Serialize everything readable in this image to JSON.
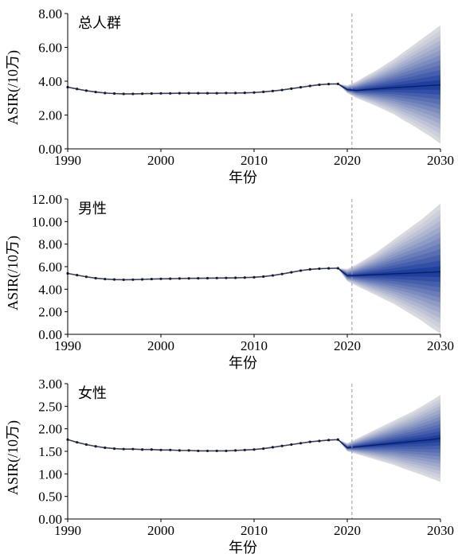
{
  "colors": {
    "fan_outer": "#d9d9de",
    "fan_inner": "#1f3f9e",
    "forecast_line": "#0a1f66",
    "observed_line": "#3a3f62",
    "observed_dot": "#1c1c24",
    "divider": "#9a9a9a",
    "axis": "#000000"
  },
  "chart_data": [
    {
      "type": "line",
      "title": "总人群",
      "xlabel": "年份",
      "ylabel": "ASIR(/10万)",
      "xlim": [
        1990,
        2030
      ],
      "ylim": [
        0,
        8
      ],
      "xticks": [
        1990,
        2000,
        2010,
        2020,
        2030
      ],
      "yticks": [
        0,
        2,
        4,
        6,
        8
      ],
      "ytick_decimals": 2,
      "grid": false,
      "divider_x": 2020.5,
      "observed": {
        "x": [
          1990,
          1991,
          1992,
          1993,
          1994,
          1995,
          1996,
          1997,
          1998,
          1999,
          2000,
          2001,
          2002,
          2003,
          2004,
          2005,
          2006,
          2007,
          2008,
          2009,
          2010,
          2011,
          2012,
          2013,
          2014,
          2015,
          2016,
          2017,
          2018,
          2019
        ],
        "y": [
          3.65,
          3.54,
          3.44,
          3.36,
          3.3,
          3.27,
          3.25,
          3.25,
          3.26,
          3.27,
          3.28,
          3.28,
          3.29,
          3.29,
          3.29,
          3.29,
          3.29,
          3.3,
          3.3,
          3.31,
          3.33,
          3.37,
          3.42,
          3.48,
          3.56,
          3.64,
          3.72,
          3.79,
          3.83,
          3.84
        ]
      },
      "forecast": {
        "x": [
          2019,
          2020,
          2021,
          2022,
          2023,
          2024,
          2025,
          2026,
          2027,
          2028,
          2029,
          2030
        ],
        "y": [
          3.84,
          3.5,
          3.45,
          3.5,
          3.54,
          3.58,
          3.62,
          3.65,
          3.68,
          3.72,
          3.75,
          3.78
        ],
        "upper": [
          3.84,
          3.75,
          3.98,
          4.3,
          4.6,
          4.95,
          5.3,
          5.7,
          6.1,
          6.5,
          6.9,
          7.3
        ],
        "lower": [
          3.84,
          3.3,
          3.0,
          2.78,
          2.55,
          2.3,
          2.05,
          1.7,
          1.4,
          1.05,
          0.7,
          0.3
        ]
      }
    },
    {
      "type": "line",
      "title": "男性",
      "xlabel": "年份",
      "ylabel": "ASIR(/10万)",
      "xlim": [
        1990,
        2030
      ],
      "ylim": [
        0,
        12
      ],
      "xticks": [
        1990,
        2000,
        2010,
        2020,
        2030
      ],
      "yticks": [
        0,
        2,
        4,
        6,
        8,
        10,
        12
      ],
      "ytick_decimals": 2,
      "grid": false,
      "divider_x": 2020.5,
      "observed": {
        "x": [
          1990,
          1991,
          1992,
          1993,
          1994,
          1995,
          1996,
          1997,
          1998,
          1999,
          2000,
          2001,
          2002,
          2003,
          2004,
          2005,
          2006,
          2007,
          2008,
          2009,
          2010,
          2011,
          2012,
          2013,
          2014,
          2015,
          2016,
          2017,
          2018,
          2019
        ],
        "y": [
          5.4,
          5.25,
          5.1,
          4.98,
          4.9,
          4.86,
          4.84,
          4.85,
          4.87,
          4.9,
          4.92,
          4.93,
          4.95,
          4.96,
          4.97,
          4.98,
          4.99,
          5.0,
          5.01,
          5.03,
          5.06,
          5.12,
          5.22,
          5.35,
          5.5,
          5.65,
          5.76,
          5.82,
          5.85,
          5.86
        ]
      },
      "forecast": {
        "x": [
          2019,
          2020,
          2021,
          2022,
          2023,
          2024,
          2025,
          2026,
          2027,
          2028,
          2029,
          2030
        ],
        "y": [
          5.86,
          5.2,
          5.22,
          5.26,
          5.3,
          5.33,
          5.37,
          5.4,
          5.44,
          5.47,
          5.5,
          5.55
        ],
        "upper": [
          5.86,
          5.8,
          6.2,
          6.7,
          7.2,
          7.8,
          8.4,
          9.0,
          9.6,
          10.2,
          10.9,
          11.6
        ],
        "lower": [
          5.86,
          4.7,
          4.3,
          3.9,
          3.5,
          3.1,
          2.7,
          2.2,
          1.7,
          1.2,
          0.6,
          0.05
        ]
      }
    },
    {
      "type": "line",
      "title": "女性",
      "xlabel": "年份",
      "ylabel": "ASIR(/10万)",
      "xlim": [
        1990,
        2030
      ],
      "ylim": [
        0,
        3
      ],
      "xticks": [
        1990,
        2000,
        2010,
        2020,
        2030
      ],
      "yticks": [
        0,
        0.5,
        1.0,
        1.5,
        2.0,
        2.5,
        3.0
      ],
      "ytick_decimals": 2,
      "grid": false,
      "divider_x": 2020.5,
      "observed": {
        "x": [
          1990,
          1991,
          1992,
          1993,
          1994,
          1995,
          1996,
          1997,
          1998,
          1999,
          2000,
          2001,
          2002,
          2003,
          2004,
          2005,
          2006,
          2007,
          2008,
          2009,
          2010,
          2011,
          2012,
          2013,
          2014,
          2015,
          2016,
          2017,
          2018,
          2019
        ],
        "y": [
          1.76,
          1.7,
          1.65,
          1.61,
          1.58,
          1.56,
          1.55,
          1.55,
          1.54,
          1.54,
          1.53,
          1.53,
          1.52,
          1.52,
          1.51,
          1.51,
          1.51,
          1.51,
          1.52,
          1.53,
          1.54,
          1.56,
          1.59,
          1.62,
          1.65,
          1.68,
          1.71,
          1.73,
          1.75,
          1.76
        ]
      },
      "forecast": {
        "x": [
          2019,
          2020,
          2021,
          2022,
          2023,
          2024,
          2025,
          2026,
          2027,
          2028,
          2029,
          2030
        ],
        "y": [
          1.76,
          1.58,
          1.6,
          1.62,
          1.64,
          1.66,
          1.68,
          1.7,
          1.72,
          1.74,
          1.76,
          1.79
        ],
        "upper": [
          1.76,
          1.68,
          1.78,
          1.88,
          1.98,
          2.08,
          2.18,
          2.28,
          2.38,
          2.5,
          2.62,
          2.75
        ],
        "lower": [
          1.76,
          1.5,
          1.44,
          1.38,
          1.32,
          1.26,
          1.2,
          1.12,
          1.05,
          0.98,
          0.9,
          0.82
        ]
      }
    }
  ]
}
